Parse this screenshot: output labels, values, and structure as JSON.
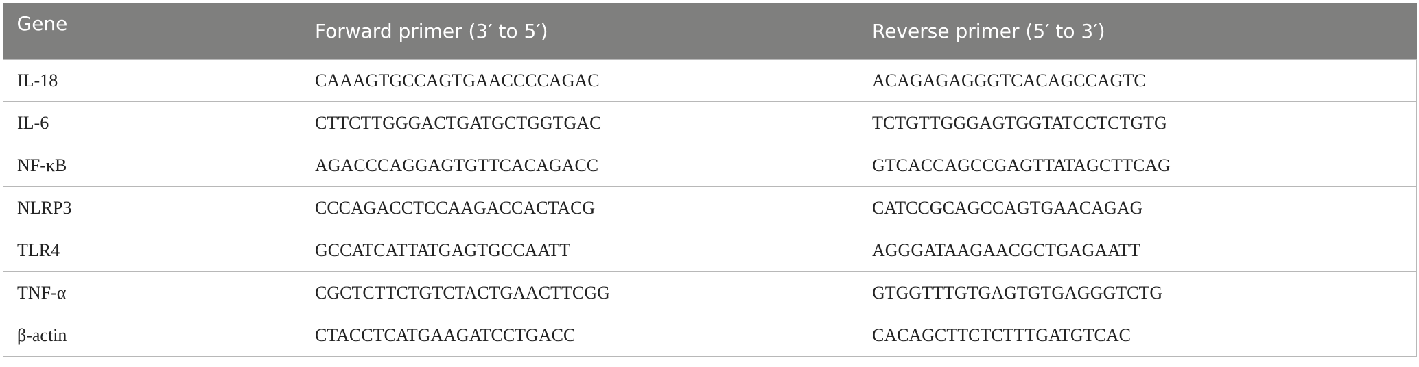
{
  "table": {
    "header": [
      "Gene",
      "Forward primer (3′ to 5′)",
      "Reverse primer (5′ to 3′)"
    ],
    "rows": [
      [
        "IL-18",
        "CAAAGTGCCAGTGAACCCCAGAC",
        "ACAGAGAGGGTCACAGCCAGTC"
      ],
      [
        "IL-6",
        "CTTCTTGGGACTGATGCTGGTGAC",
        "TCTGTTGGGAGTGGTATCCTCTGTG"
      ],
      [
        "NF-κB",
        "AGACCCAGGAGTGTTCACAGACC",
        "GTCACCAGCCGAGTTATAGCTTCAG"
      ],
      [
        "NLRP3",
        "CCCAGACCTCCAAGACCACTACG",
        "CATCCGCAGCCAGTGAACAGAG"
      ],
      [
        "TLR4",
        "GCCATCATTATGAGTGCCAATT",
        "AGGGATAAGAACGCTGAGAATT"
      ],
      [
        "TNF-α",
        "CGCTCTTCTGTCTACTGAACTTCGG",
        "GTGGTTTGTGAGTGTGAGGGTCTG"
      ],
      [
        "β-actin",
        "CTACCTCATGAAGATCCTGACC",
        "CACAGCTTCTCTTTGATGTCAC"
      ]
    ]
  }
}
